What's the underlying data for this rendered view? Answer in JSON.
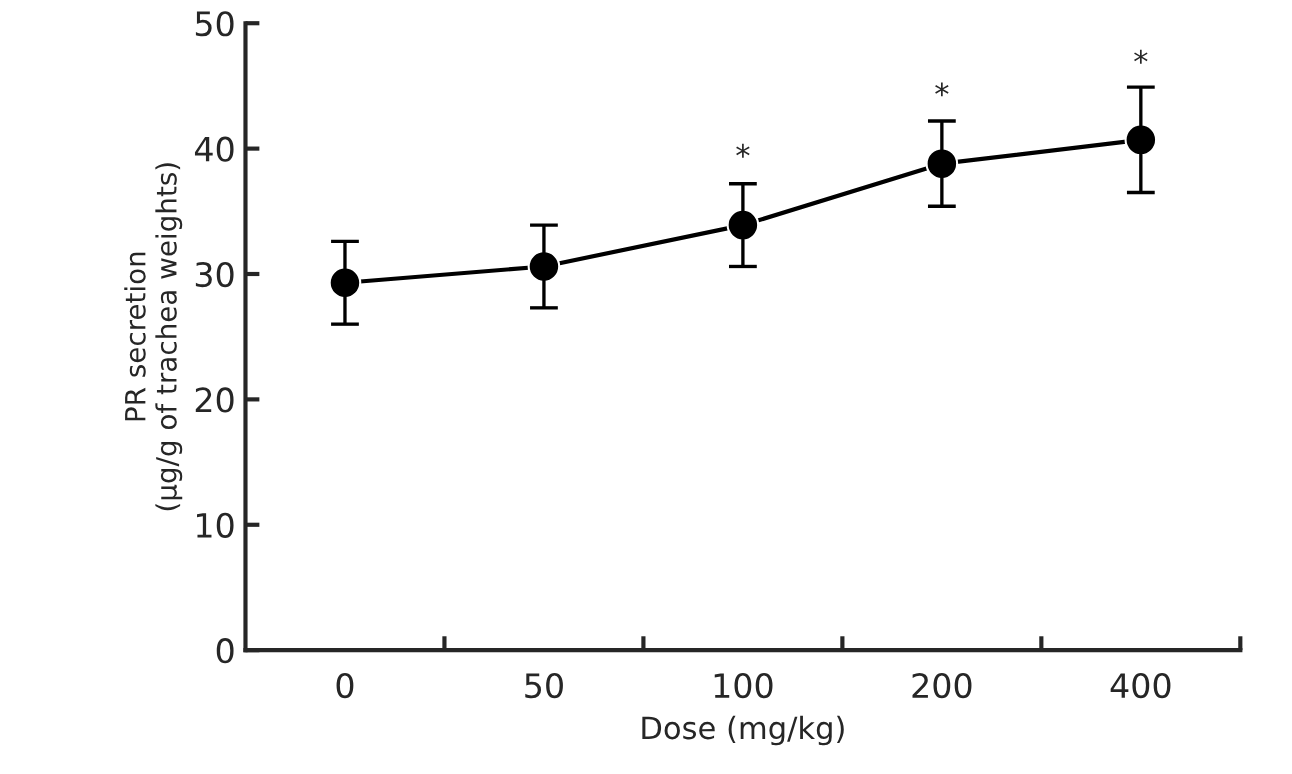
{
  "chart_data": {
    "type": "line",
    "xlabel": "Dose (mg/kg)",
    "ylabel": "PR secretion\n(μg/g of trachea weights)",
    "categories": [
      "0",
      "50",
      "100",
      "200",
      "400"
    ],
    "series": [
      {
        "color": "#000000",
        "values": [
          29.3,
          30.6,
          33.9,
          38.8,
          40.7
        ],
        "errors": [
          3.3,
          3.3,
          3.3,
          3.4,
          4.2
        ]
      }
    ],
    "ylim": [
      0,
      50
    ],
    "yticks": [
      0,
      10,
      20,
      30,
      40,
      50
    ],
    "marker": "circle",
    "line_style": "solid",
    "grid": false,
    "legend": false,
    "annotations": [
      {
        "text": "*",
        "x": "100",
        "y": 37.4
      },
      {
        "text": "*",
        "x": "200",
        "y": 42.3
      },
      {
        "text": "*",
        "x": "400",
        "y": 44.9
      }
    ]
  }
}
